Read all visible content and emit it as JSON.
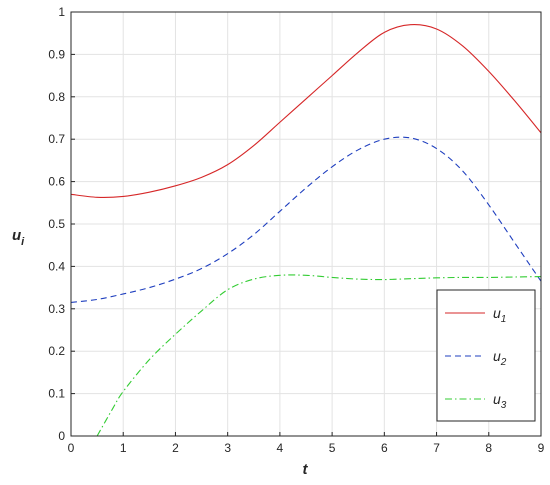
{
  "chart_data": {
    "type": "line",
    "title": "",
    "xlabel": {
      "main": "t",
      "sub": ""
    },
    "ylabel": {
      "main": "u",
      "sub": "i"
    },
    "xlim": [
      0,
      9
    ],
    "ylim": [
      0,
      1
    ],
    "xticks": [
      0,
      1,
      2,
      3,
      4,
      5,
      6,
      7,
      8,
      9
    ],
    "yticks": [
      0,
      0.1,
      0.2,
      0.3,
      0.4,
      0.5,
      0.6,
      0.7,
      0.8,
      0.9,
      1
    ],
    "ytick_labels": [
      "0",
      "0.1",
      "0.2",
      "0.3",
      "0.4",
      "0.5",
      "0.6",
      "0.7",
      "0.8",
      "0.9",
      "1"
    ],
    "grid": true,
    "legend": "bottom-right",
    "series": [
      {
        "name": "u",
        "sub": "1",
        "color": "#d62728",
        "dash": "solid",
        "x": [
          0,
          0.5,
          1,
          1.5,
          2,
          2.5,
          3,
          3.5,
          4,
          4.5,
          5,
          5.5,
          6,
          6.5,
          7,
          7.5,
          8,
          8.5,
          9
        ],
        "y": [
          0.57,
          0.563,
          0.565,
          0.575,
          0.59,
          0.61,
          0.64,
          0.685,
          0.74,
          0.795,
          0.85,
          0.905,
          0.952,
          0.97,
          0.96,
          0.92,
          0.86,
          0.79,
          0.715
        ]
      },
      {
        "name": "u",
        "sub": "2",
        "color": "#1f3fbf",
        "dash": "dashed",
        "x": [
          0,
          0.5,
          1,
          1.5,
          2,
          2.5,
          3,
          3.5,
          4,
          4.5,
          5,
          5.5,
          6,
          6.5,
          7,
          7.5,
          8,
          8.5,
          9
        ],
        "y": [
          0.315,
          0.322,
          0.335,
          0.35,
          0.37,
          0.395,
          0.43,
          0.475,
          0.53,
          0.585,
          0.635,
          0.675,
          0.7,
          0.703,
          0.678,
          0.625,
          0.545,
          0.455,
          0.365
        ]
      },
      {
        "name": "u",
        "sub": "3",
        "color": "#33cc33",
        "dash": "dashdot",
        "x": [
          0.5,
          0.8,
          1,
          1.5,
          2,
          2.5,
          3,
          3.5,
          4,
          4.5,
          5,
          5.5,
          6,
          6.5,
          7,
          7.5,
          8,
          8.5,
          9
        ],
        "y": [
          0.0,
          0.065,
          0.105,
          0.18,
          0.24,
          0.295,
          0.345,
          0.37,
          0.379,
          0.379,
          0.374,
          0.37,
          0.369,
          0.371,
          0.373,
          0.374,
          0.374,
          0.375,
          0.376
        ]
      }
    ]
  }
}
